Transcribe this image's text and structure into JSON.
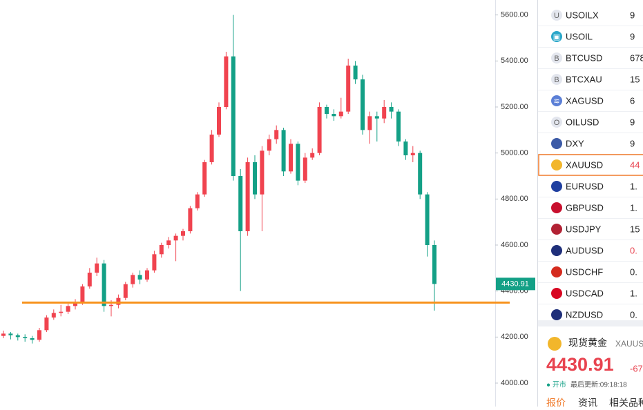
{
  "chart_data": {
    "type": "candlestick",
    "ohlc": [
      [
        4205,
        4228,
        4195,
        4215
      ],
      [
        4215,
        4222,
        4190,
        4208
      ],
      [
        4208,
        4215,
        4185,
        4200
      ],
      [
        4200,
        4212,
        4180,
        4195
      ],
      [
        4195,
        4205,
        4172,
        4188
      ],
      [
        4188,
        4240,
        4180,
        4230
      ],
      [
        4230,
        4295,
        4222,
        4285
      ],
      [
        4285,
        4320,
        4275,
        4305
      ],
      [
        4305,
        4340,
        4290,
        4310
      ],
      [
        4310,
        4345,
        4300,
        4335
      ],
      [
        4335,
        4365,
        4320,
        4350
      ],
      [
        4350,
        4430,
        4340,
        4420
      ],
      [
        4420,
        4500,
        4410,
        4480
      ],
      [
        4480,
        4545,
        4465,
        4520
      ],
      [
        4520,
        4535,
        4310,
        4335
      ],
      [
        4335,
        4360,
        4290,
        4340
      ],
      [
        4340,
        4385,
        4325,
        4370
      ],
      [
        4370,
        4440,
        4360,
        4430
      ],
      [
        4430,
        4480,
        4415,
        4470
      ],
      [
        4470,
        4490,
        4430,
        4450
      ],
      [
        4450,
        4500,
        4440,
        4490
      ],
      [
        4490,
        4575,
        4480,
        4560
      ],
      [
        4560,
        4610,
        4545,
        4600
      ],
      [
        4600,
        4635,
        4585,
        4620
      ],
      [
        4620,
        4650,
        4530,
        4640
      ],
      [
        4640,
        4670,
        4620,
        4660
      ],
      [
        4660,
        4770,
        4650,
        4760
      ],
      [
        4760,
        4830,
        4750,
        4820
      ],
      [
        4820,
        4970,
        4810,
        4960
      ],
      [
        4960,
        5100,
        4950,
        5080
      ],
      [
        5080,
        5220,
        5070,
        5200
      ],
      [
        5200,
        5440,
        5190,
        5420
      ],
      [
        5420,
        5600,
        4880,
        4900
      ],
      [
        4900,
        4930,
        4400,
        4660
      ],
      [
        4660,
        4980,
        4640,
        4960
      ],
      [
        4960,
        4990,
        4800,
        4820
      ],
      [
        4820,
        5030,
        4660,
        5010
      ],
      [
        5010,
        5080,
        4990,
        5060
      ],
      [
        5060,
        5120,
        5040,
        5100
      ],
      [
        5100,
        5110,
        4900,
        4920
      ],
      [
        4920,
        5060,
        4910,
        5040
      ],
      [
        5040,
        5050,
        4860,
        4880
      ],
      [
        4880,
        5000,
        4870,
        4980
      ],
      [
        4980,
        5020,
        4970,
        5000
      ],
      [
        5000,
        5220,
        4990,
        5200
      ],
      [
        5200,
        5210,
        5150,
        5170
      ],
      [
        5170,
        5190,
        5140,
        5160
      ],
      [
        5160,
        5240,
        5150,
        5180
      ],
      [
        5180,
        5410,
        5170,
        5380
      ],
      [
        5380,
        5400,
        5300,
        5320
      ],
      [
        5320,
        5340,
        5080,
        5100
      ],
      [
        5100,
        5180,
        5040,
        5160
      ],
      [
        5160,
        5180,
        5050,
        5150
      ],
      [
        5150,
        5230,
        5130,
        5200
      ],
      [
        5200,
        5220,
        5150,
        5180
      ],
      [
        5180,
        5190,
        5030,
        5050
      ],
      [
        5050,
        5060,
        4970,
        4990
      ],
      [
        4990,
        5030,
        4960,
        5000
      ],
      [
        5000,
        5010,
        4800,
        4820
      ],
      [
        4820,
        4830,
        4550,
        4600
      ],
      [
        4600,
        4620,
        4315,
        4430.91
      ]
    ],
    "ylim": [
      3898,
      5665
    ],
    "yticks": [
      {
        "value": 4000,
        "label": "4000.00"
      },
      {
        "value": 4200,
        "label": "4200.00"
      },
      {
        "value": 4400,
        "label": "4400.00"
      },
      {
        "value": 4600,
        "label": "4600.00"
      },
      {
        "value": 4800,
        "label": "4800.00"
      },
      {
        "value": 5000,
        "label": "5000.00"
      },
      {
        "value": 5200,
        "label": "5200.00"
      },
      {
        "value": 5400,
        "label": "5400.00"
      },
      {
        "value": 5600,
        "label": "5600.00"
      }
    ],
    "up_color": "#f0434f",
    "down_color": "#13a086",
    "hline": {
      "value": 4350,
      "color": "#f7931e"
    },
    "last_price": 4430.91
  },
  "watchlist": [
    {
      "icon": "U",
      "icon_color": "#e3e6ee",
      "symbol": "USOILX",
      "price": "9",
      "price_color": "#222"
    },
    {
      "icon": "▣",
      "icon_color": "#2aa7c9",
      "symbol": "USOIL",
      "price": "9",
      "price_color": "#222"
    },
    {
      "icon": "B",
      "icon_color": "#e3e6ee",
      "symbol": "BTCUSD",
      "price": "678",
      "price_color": "#222"
    },
    {
      "icon": "B",
      "icon_color": "#e3e6ee",
      "symbol": "BTCXAU",
      "price": "15",
      "price_color": "#222"
    },
    {
      "icon": "≋",
      "icon_color": "#5b7fd6",
      "symbol": "XAGUSD",
      "price": "6",
      "price_color": "#222"
    },
    {
      "icon": "O",
      "icon_color": "#e3e6ee",
      "symbol": "OILUSD",
      "price": "9",
      "price_color": "#222"
    },
    {
      "icon_color": "#3c5aa6",
      "symbol": "DXY",
      "price": "9",
      "price_color": "#222"
    },
    {
      "icon_color": "#f2b62b",
      "symbol": "XAUUSD",
      "price": "44",
      "price_color": "#e8434f"
    },
    {
      "icon_color": "#1f3fa0",
      "symbol": "EURUSD",
      "price": "1.",
      "price_color": "#222"
    },
    {
      "icon_color": "#c8102e",
      "symbol": "GBPUSD",
      "price": "1.",
      "price_color": "#222"
    },
    {
      "icon_color": "#b22234",
      "symbol": "USDJPY",
      "price": "15",
      "price_color": "#222"
    },
    {
      "icon_color": "#1f2f7a",
      "symbol": "AUDUSD",
      "price": "0.",
      "price_color": "#e8434f"
    },
    {
      "icon_color": "#d52b1e",
      "symbol": "USDCHF",
      "price": "0.",
      "price_color": "#222"
    },
    {
      "icon_color": "#d80621",
      "symbol": "USDCAD",
      "price": "1.",
      "price_color": "#222"
    },
    {
      "icon_color": "#1f2f7a",
      "symbol": "NZDUSD",
      "price": "0.",
      "price_color": "#222"
    }
  ],
  "selected": 7,
  "quote": {
    "name": "现货黄金",
    "symbol": "XAUUS",
    "price": "4430.91",
    "change": "-67",
    "status": "● 开市",
    "updated": "最后更新:09:18:18"
  },
  "tabs": [
    "报价",
    "资讯",
    "相关品种"
  ]
}
